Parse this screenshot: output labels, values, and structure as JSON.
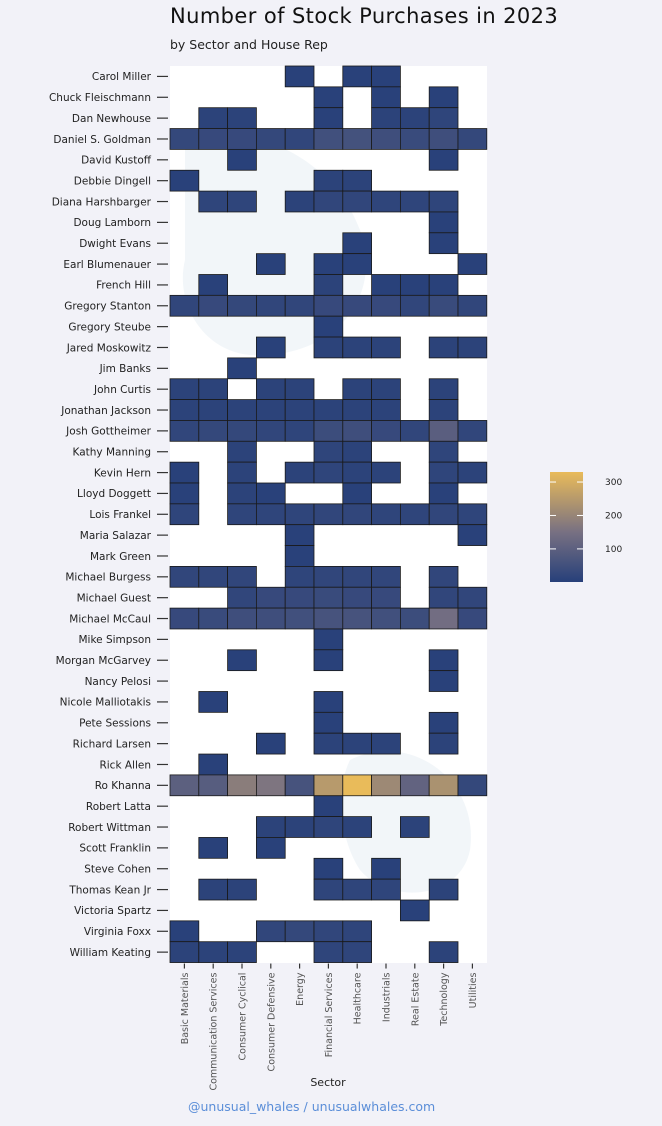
{
  "title": "Number of Stock Purchases in 2023",
  "subtitle": "by Sector and House Rep",
  "credit": "@unusual_whales / unusualwhales.com",
  "chart_data": {
    "type": "heatmap",
    "xlabel": "Sector",
    "ylabel": "",
    "x": [
      "Basic Materials",
      "Communication Services",
      "Consumer Cyclical",
      "Consumer Defensive",
      "Energy",
      "Financial Services",
      "Healthcare",
      "Industrials",
      "Real Estate",
      "Technology",
      "Utilities"
    ],
    "y": [
      "Carol Miller",
      "Chuck Fleischmann",
      "Dan Newhouse",
      "Daniel S. Goldman",
      "David Kustoff",
      "Debbie Dingell",
      "Diana Harshbarger",
      "Doug Lamborn",
      "Dwight Evans",
      "Earl Blumenauer",
      "French Hill",
      "Gregory Stanton",
      "Gregory Steube",
      "Jared Moskowitz",
      "Jim Banks",
      "John Curtis",
      "Jonathan Jackson",
      "Josh Gottheimer",
      "Kathy Manning",
      "Kevin Hern",
      "Lloyd Doggett",
      "Lois Frankel",
      "Maria Salazar",
      "Mark Green",
      "Michael Burgess",
      "Michael Guest",
      "Michael McCaul",
      "Mike Simpson",
      "Morgan McGarvey",
      "Nancy Pelosi",
      "Nicole Malliotakis",
      "Pete Sessions",
      "Richard Larsen",
      "Rick Allen",
      "Ro Khanna",
      "Robert Latta",
      "Robert Wittman",
      "Scott Franklin",
      "Steve Cohen",
      "Thomas Kean Jr",
      "Victoria Spartz",
      "Virginia Foxx",
      "William Keating"
    ],
    "values": [
      [
        null,
        null,
        null,
        null,
        5,
        null,
        5,
        5,
        null,
        null,
        null
      ],
      [
        null,
        null,
        null,
        null,
        null,
        5,
        null,
        5,
        null,
        5,
        null
      ],
      [
        null,
        10,
        10,
        null,
        null,
        5,
        null,
        10,
        10,
        15,
        null
      ],
      [
        25,
        30,
        30,
        25,
        20,
        50,
        55,
        45,
        35,
        45,
        25
      ],
      [
        null,
        null,
        5,
        null,
        null,
        null,
        null,
        null,
        null,
        5,
        null
      ],
      [
        5,
        null,
        null,
        null,
        null,
        10,
        10,
        null,
        null,
        null,
        null
      ],
      [
        null,
        15,
        15,
        null,
        10,
        20,
        20,
        15,
        15,
        15,
        null
      ],
      [
        null,
        null,
        null,
        null,
        null,
        null,
        null,
        null,
        null,
        5,
        null
      ],
      [
        null,
        null,
        null,
        null,
        null,
        null,
        5,
        null,
        null,
        5,
        null
      ],
      [
        null,
        null,
        null,
        5,
        null,
        5,
        5,
        null,
        null,
        null,
        5
      ],
      [
        null,
        5,
        null,
        null,
        null,
        10,
        null,
        5,
        5,
        5,
        null
      ],
      [
        20,
        30,
        25,
        20,
        20,
        30,
        30,
        30,
        20,
        35,
        20
      ],
      [
        null,
        null,
        null,
        null,
        null,
        5,
        null,
        null,
        null,
        null,
        null
      ],
      [
        null,
        null,
        null,
        5,
        null,
        10,
        10,
        10,
        null,
        10,
        10
      ],
      [
        null,
        null,
        5,
        null,
        null,
        null,
        null,
        null,
        null,
        null,
        null
      ],
      [
        10,
        10,
        null,
        10,
        10,
        null,
        10,
        10,
        null,
        10,
        null
      ],
      [
        10,
        10,
        10,
        10,
        10,
        10,
        10,
        10,
        null,
        10,
        null
      ],
      [
        20,
        25,
        25,
        20,
        15,
        40,
        45,
        30,
        20,
        95,
        20
      ],
      [
        null,
        null,
        10,
        null,
        null,
        15,
        10,
        null,
        null,
        15,
        null
      ],
      [
        5,
        null,
        10,
        null,
        10,
        15,
        10,
        10,
        null,
        15,
        10
      ],
      [
        5,
        null,
        10,
        5,
        null,
        null,
        5,
        null,
        null,
        5,
        null
      ],
      [
        15,
        null,
        15,
        15,
        15,
        20,
        20,
        15,
        15,
        20,
        15
      ],
      [
        null,
        null,
        null,
        null,
        5,
        null,
        null,
        null,
        null,
        null,
        5
      ],
      [
        null,
        null,
        null,
        null,
        5,
        null,
        null,
        null,
        null,
        null,
        null
      ],
      [
        20,
        20,
        20,
        null,
        15,
        20,
        20,
        20,
        null,
        20,
        null
      ],
      [
        null,
        null,
        20,
        30,
        30,
        35,
        30,
        30,
        null,
        20,
        20
      ],
      [
        30,
        35,
        45,
        45,
        50,
        60,
        60,
        50,
        40,
        140,
        30
      ],
      [
        null,
        null,
        null,
        null,
        null,
        5,
        null,
        null,
        null,
        null,
        null
      ],
      [
        null,
        null,
        5,
        null,
        null,
        5,
        null,
        null,
        null,
        5,
        null
      ],
      [
        null,
        null,
        null,
        null,
        null,
        null,
        null,
        null,
        null,
        5,
        null
      ],
      [
        null,
        5,
        null,
        null,
        null,
        5,
        null,
        null,
        null,
        null,
        null
      ],
      [
        null,
        null,
        null,
        null,
        null,
        5,
        null,
        null,
        null,
        5,
        null
      ],
      [
        null,
        null,
        null,
        5,
        null,
        10,
        10,
        10,
        null,
        10,
        null
      ],
      [
        null,
        5,
        null,
        null,
        null,
        null,
        null,
        null,
        null,
        null,
        null
      ],
      [
        100,
        90,
        180,
        160,
        60,
        250,
        330,
        210,
        110,
        230,
        25
      ],
      [
        null,
        null,
        null,
        null,
        null,
        5,
        null,
        null,
        null,
        null,
        null
      ],
      [
        null,
        null,
        null,
        10,
        10,
        15,
        10,
        null,
        10,
        null,
        null
      ],
      [
        null,
        5,
        null,
        5,
        null,
        null,
        null,
        null,
        null,
        null,
        null
      ],
      [
        null,
        null,
        null,
        null,
        null,
        5,
        null,
        5,
        null,
        null,
        null
      ],
      [
        null,
        10,
        10,
        null,
        null,
        15,
        15,
        15,
        null,
        10,
        null
      ],
      [
        null,
        null,
        null,
        null,
        null,
        null,
        null,
        null,
        5,
        null,
        null
      ],
      [
        5,
        null,
        null,
        20,
        25,
        20,
        15,
        null,
        null,
        null,
        null
      ],
      [
        10,
        10,
        10,
        null,
        null,
        15,
        15,
        null,
        null,
        10,
        null
      ]
    ],
    "colorbar": {
      "ticks": [
        100,
        200,
        300
      ],
      "range": [
        1,
        330
      ],
      "low_color": "#27407a",
      "mid_color": "#777082",
      "high_color": "#e9bb5a"
    },
    "grid": false,
    "legend": "right"
  }
}
